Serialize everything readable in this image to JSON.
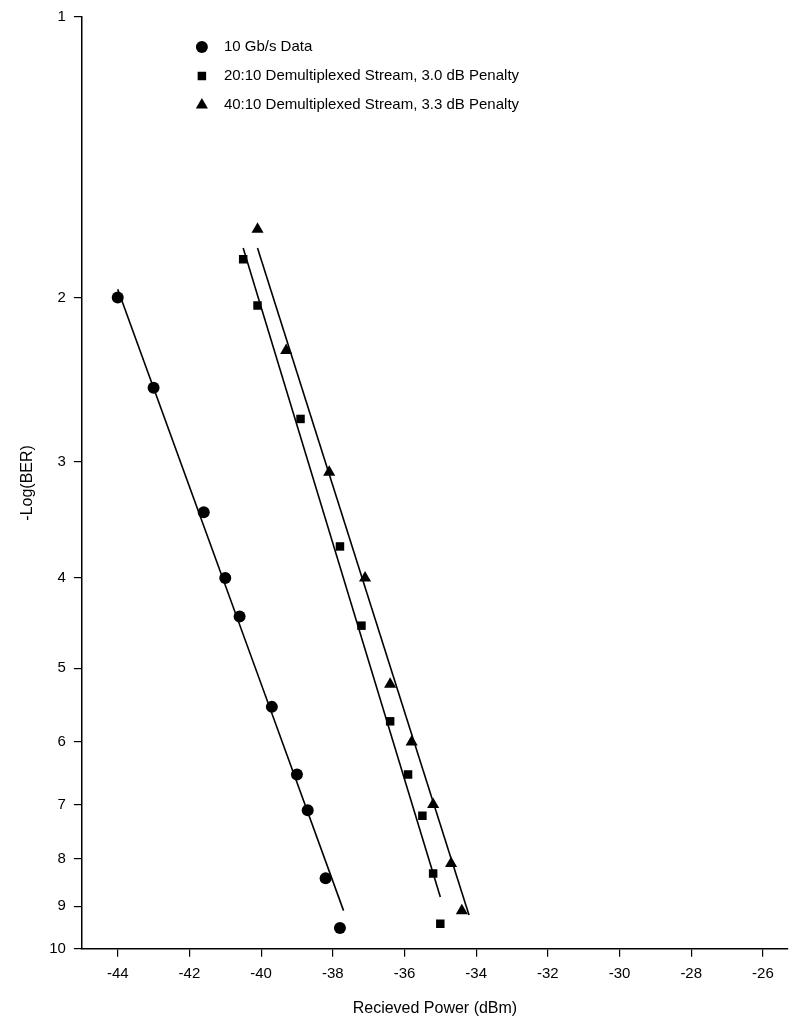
{
  "chart_data": {
    "type": "scatter",
    "xlabel": "Recieved Power (dBm)",
    "ylabel": "-Log(BER)",
    "log": "y",
    "xlim": [
      -45,
      -25.3
    ],
    "xticks": [
      -44,
      -42,
      -40,
      -38,
      -36,
      -34,
      -32,
      -30,
      -28,
      -26
    ],
    "ylim": [
      10,
      1
    ],
    "yticks": [
      1,
      2,
      3,
      4,
      5,
      6,
      7,
      8,
      9,
      10
    ],
    "grid": false,
    "legend": "top left",
    "series": [
      {
        "name": "10 Gb/s Data",
        "marker": "circle",
        "color": "#000000",
        "x": [
          -44.0,
          -43.0,
          -41.6,
          -41.0,
          -40.6,
          -39.7,
          -39.0,
          -38.7,
          -38.2,
          -37.8
        ],
        "values": [
          2.0,
          2.5,
          3.4,
          4.0,
          4.4,
          5.5,
          6.5,
          7.1,
          8.4,
          9.5
        ]
      },
      {
        "name": "20:10 Demultiplexed Stream, 3.0 dB Penalty",
        "marker": "square",
        "color": "#000000",
        "x": [
          -40.5,
          -40.1,
          -38.9,
          -37.8,
          -37.2,
          -36.4,
          -35.9,
          -35.5,
          -35.2,
          -35.0
        ],
        "values": [
          1.82,
          2.04,
          2.7,
          3.7,
          4.5,
          5.7,
          6.5,
          7.2,
          8.3,
          9.4
        ]
      },
      {
        "name": "40:10 Demultiplexed Stream, 3.3 dB Penalty",
        "marker": "triangle",
        "color": "#000000",
        "x": [
          -40.1,
          -39.3,
          -38.1,
          -37.1,
          -36.4,
          -35.8,
          -35.2,
          -34.7,
          -34.4
        ],
        "values": [
          1.69,
          2.28,
          3.08,
          4.0,
          5.2,
          6.0,
          7.0,
          8.1,
          9.1
        ]
      },
      {
        "type": "line",
        "marker": "none",
        "line_style": "solid",
        "color": "#000000",
        "x": [
          -44.0,
          -37.7
        ],
        "values": [
          1.96,
          9.1
        ]
      },
      {
        "type": "line",
        "marker": "none",
        "line_style": "solid",
        "color": "#000000",
        "x": [
          -40.5,
          -35.0
        ],
        "values": [
          1.77,
          8.8
        ]
      },
      {
        "type": "line",
        "marker": "none",
        "line_style": "solid",
        "color": "#000000",
        "x": [
          -40.1,
          -34.2
        ],
        "values": [
          1.77,
          9.2
        ]
      }
    ]
  }
}
